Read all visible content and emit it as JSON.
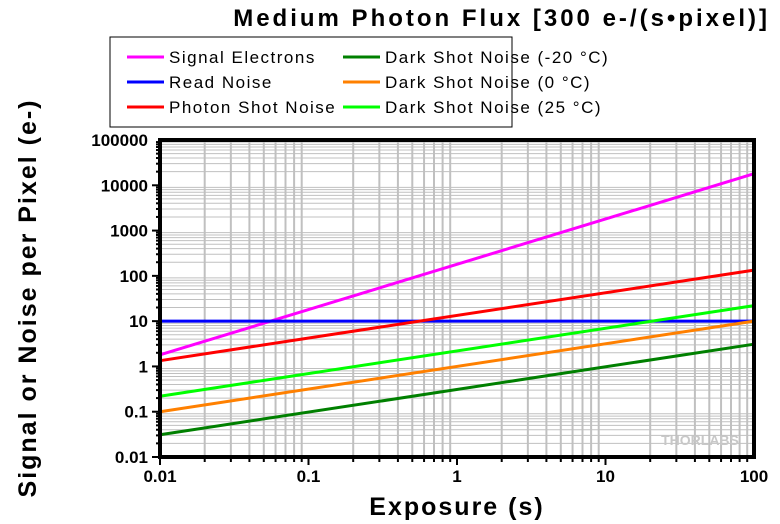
{
  "chart_data": {
    "type": "line",
    "title": "Medium Photon Flux [300 e-/(s•pixel)]",
    "xlabel": "Exposure (s)",
    "ylabel": "Signal or Noise per Pixel (e-)",
    "xscale": "log",
    "yscale": "log",
    "xlim": [
      0.01,
      100
    ],
    "ylim": [
      0.01,
      100000
    ],
    "xticks": [
      "0.01",
      "0.1",
      "1",
      "10",
      "100"
    ],
    "yticks": [
      "0.01",
      "0.1",
      "1",
      "10",
      "100",
      "1000",
      "10000",
      "100000"
    ],
    "grid": true,
    "legend_position": "top",
    "watermark": "THORLABS",
    "series": [
      {
        "name": "Signal Electrons",
        "color": "#ff00ff",
        "x": [
          0.01,
          100
        ],
        "y": [
          1.8,
          18000
        ]
      },
      {
        "name": "Read Noise",
        "color": "#0000ff",
        "x": [
          0.01,
          100
        ],
        "y": [
          10,
          10
        ]
      },
      {
        "name": "Photon Shot Noise",
        "color": "#ff0000",
        "x": [
          0.01,
          100
        ],
        "y": [
          1.34,
          134
        ]
      },
      {
        "name": "Dark Shot Noise (-20 °C)",
        "color": "#008000",
        "x": [
          0.01,
          100
        ],
        "y": [
          0.031,
          3.1
        ]
      },
      {
        "name": "Dark Shot Noise (0 °C)",
        "color": "#ff8000",
        "x": [
          0.01,
          100
        ],
        "y": [
          0.1,
          10
        ]
      },
      {
        "name": "Dark Shot Noise (25 °C)",
        "color": "#00ff00",
        "x": [
          0.01,
          100
        ],
        "y": [
          0.22,
          22
        ]
      }
    ]
  }
}
